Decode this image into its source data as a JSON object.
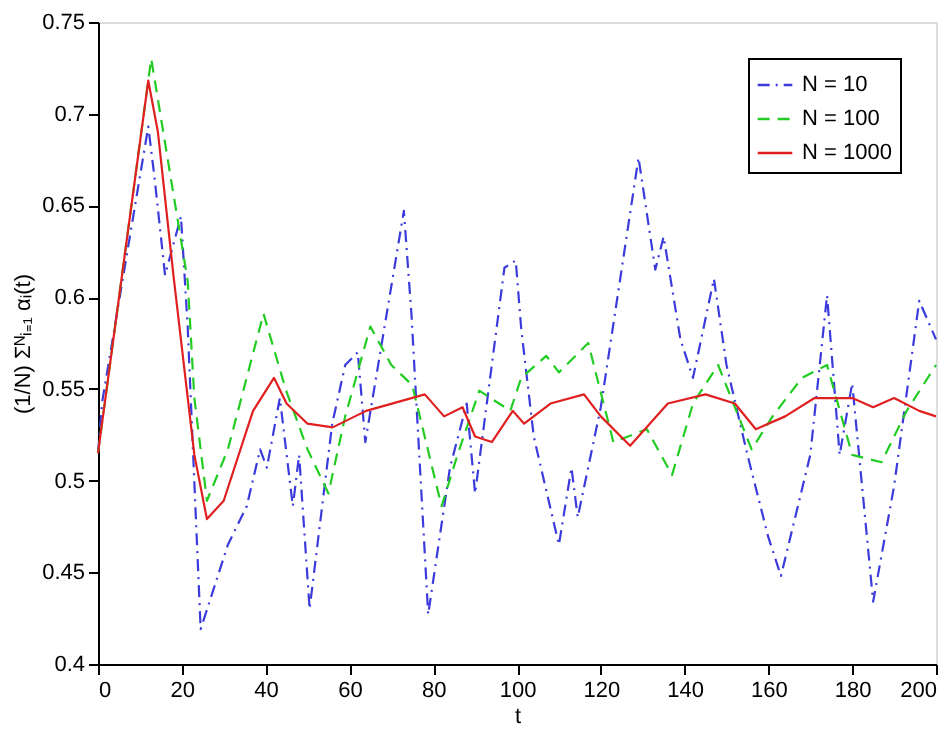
{
  "chart_data": {
    "type": "line",
    "xlabel": "t",
    "ylabel": "(1/N) Σᴺᵢ₌₁ αᵢ(t)",
    "xlim": [
      0,
      200
    ],
    "xticks": [
      0,
      20,
      40,
      60,
      80,
      100,
      120,
      140,
      160,
      180,
      200
    ],
    "ylim": [
      0.4,
      0.75
    ],
    "yticks": [
      0.4,
      0.45,
      0.5,
      0.55,
      0.6,
      0.65,
      0.7,
      0.75
    ],
    "grid": false,
    "legend": "top right",
    "marker": "none",
    "series": [
      {
        "name": "N = 10",
        "color": "#3b3bdc",
        "line_style": "dashdot",
        "x": [
          0,
          1,
          12,
          13.5,
          16,
          19.8,
          21.4,
          24.5,
          31,
          35.5,
          38.7,
          40.3,
          43.4,
          46.5,
          48,
          50.5,
          55.9,
          59,
          62,
          63.8,
          73,
          74.8,
          78.8,
          84,
          88,
          90,
          97,
          99.7,
          101,
          104,
          110,
          113,
          114.5,
          120,
          129,
          133,
          135,
          139,
          142,
          147,
          150,
          155,
          160,
          163,
          170,
          174,
          177,
          180,
          185,
          190,
          196,
          200
        ],
        "values": [
          0.515,
          0.543,
          0.693,
          0.665,
          0.612,
          0.644,
          0.584,
          0.419,
          0.465,
          0.486,
          0.517,
          0.507,
          0.545,
          0.486,
          0.514,
          0.43,
          0.531,
          0.563,
          0.57,
          0.521,
          0.647,
          0.591,
          0.427,
          0.507,
          0.542,
          0.493,
          0.616,
          0.62,
          0.583,
          0.524,
          0.465,
          0.507,
          0.48,
          0.54,
          0.676,
          0.615,
          0.633,
          0.577,
          0.556,
          0.61,
          0.563,
          0.514,
          0.469,
          0.448,
          0.514,
          0.601,
          0.514,
          0.553,
          0.434,
          0.497,
          0.598,
          0.577
        ]
      },
      {
        "name": "N = 100",
        "color": "#22cc22",
        "line_style": "dashed",
        "x": [
          0,
          12.7,
          21.4,
          23,
          26,
          31,
          39.5,
          44.9,
          50,
          55,
          59,
          65,
          70,
          75,
          82,
          85.8,
          91,
          98.4,
          101,
          107,
          110,
          117,
          123,
          131,
          137,
          142,
          148,
          156,
          161,
          168,
          174,
          180,
          187,
          193,
          200
        ],
        "values": [
          0.515,
          0.73,
          0.609,
          0.545,
          0.489,
          0.517,
          0.591,
          0.549,
          0.517,
          0.493,
          0.535,
          0.584,
          0.563,
          0.552,
          0.486,
          0.514,
          0.549,
          0.538,
          0.556,
          0.568,
          0.559,
          0.575,
          0.521,
          0.528,
          0.503,
          0.542,
          0.563,
          0.517,
          0.535,
          0.556,
          0.563,
          0.514,
          0.51,
          0.538,
          0.563
        ]
      },
      {
        "name": "N = 1000",
        "color": "#e02020",
        "line_style": "solid",
        "x": [
          0,
          12,
          14.3,
          18,
          23,
          26,
          30,
          37,
          42,
          45,
          50,
          56,
          64,
          78,
          82.6,
          87,
          90,
          94,
          99,
          101.7,
          108,
          116,
          120,
          127,
          136,
          145,
          152,
          157,
          164,
          171,
          180,
          185,
          190,
          196,
          200
        ],
        "values": [
          0.515,
          0.718,
          0.69,
          0.612,
          0.514,
          0.479,
          0.489,
          0.538,
          0.556,
          0.542,
          0.531,
          0.529,
          0.538,
          0.547,
          0.535,
          0.54,
          0.524,
          0.521,
          0.538,
          0.531,
          0.542,
          0.547,
          0.535,
          0.519,
          0.542,
          0.547,
          0.542,
          0.528,
          0.535,
          0.545,
          0.545,
          0.54,
          0.545,
          0.538,
          0.535
        ]
      }
    ]
  }
}
